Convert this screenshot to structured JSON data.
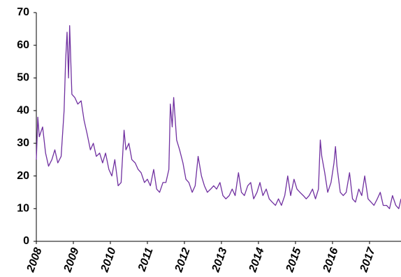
{
  "chart_data": {
    "type": "line",
    "color": "#7030a0",
    "xlim": [
      2008,
      2017.85
    ],
    "xticks": [
      2008,
      2009,
      2010,
      2011,
      2012,
      2013,
      2014,
      2015,
      2016,
      2017
    ],
    "ylim": [
      0,
      70
    ],
    "yticks": [
      0,
      10,
      20,
      30,
      40,
      50,
      60,
      70
    ],
    "grid": false,
    "x": [
      2008.0,
      2008.04,
      2008.08,
      2008.17,
      2008.25,
      2008.33,
      2008.42,
      2008.5,
      2008.58,
      2008.67,
      2008.75,
      2008.79,
      2008.83,
      2008.87,
      2008.9,
      2008.96,
      2009.04,
      2009.12,
      2009.21,
      2009.29,
      2009.37,
      2009.46,
      2009.54,
      2009.62,
      2009.71,
      2009.79,
      2009.87,
      2009.96,
      2010.04,
      2010.12,
      2010.21,
      2010.29,
      2010.37,
      2010.42,
      2010.5,
      2010.58,
      2010.67,
      2010.75,
      2010.83,
      2010.92,
      2011.0,
      2011.08,
      2011.17,
      2011.25,
      2011.33,
      2011.42,
      2011.5,
      2011.58,
      2011.62,
      2011.67,
      2011.71,
      2011.79,
      2011.87,
      2011.96,
      2012.04,
      2012.12,
      2012.21,
      2012.29,
      2012.37,
      2012.46,
      2012.54,
      2012.62,
      2012.71,
      2012.79,
      2012.87,
      2012.96,
      2013.04,
      2013.12,
      2013.21,
      2013.29,
      2013.37,
      2013.46,
      2013.54,
      2013.62,
      2013.71,
      2013.79,
      2013.87,
      2013.96,
      2014.04,
      2014.12,
      2014.21,
      2014.29,
      2014.37,
      2014.46,
      2014.54,
      2014.62,
      2014.71,
      2014.79,
      2014.87,
      2014.96,
      2015.04,
      2015.12,
      2015.21,
      2015.29,
      2015.37,
      2015.46,
      2015.54,
      2015.62,
      2015.67,
      2015.71,
      2015.79,
      2015.87,
      2015.96,
      2016.04,
      2016.08,
      2016.12,
      2016.21,
      2016.29,
      2016.37,
      2016.46,
      2016.54,
      2016.62,
      2016.71,
      2016.79,
      2016.87,
      2016.96,
      2017.04,
      2017.12,
      2017.21,
      2017.29,
      2017.37,
      2017.46,
      2017.54,
      2017.62,
      2017.71,
      2017.79,
      2017.85
    ],
    "values": [
      25,
      38,
      32,
      35,
      27,
      23,
      25,
      28,
      24,
      26,
      40,
      55,
      64,
      50,
      66,
      45,
      44,
      42,
      43,
      37,
      33,
      28,
      30,
      26,
      27,
      24,
      27,
      22,
      20,
      25,
      17,
      18,
      34,
      28,
      30,
      25,
      24,
      22,
      21,
      18,
      19,
      17,
      22,
      16,
      15,
      18,
      18,
      22,
      42,
      35,
      44,
      31,
      28,
      24,
      19,
      18,
      15,
      17,
      26,
      20,
      17,
      15,
      16,
      17,
      16,
      18,
      14,
      13,
      14,
      16,
      14,
      21,
      15,
      14,
      17,
      18,
      13,
      15,
      18,
      14,
      16,
      13,
      12,
      11,
      13,
      11,
      14,
      20,
      14,
      19,
      16,
      15,
      14,
      13,
      14,
      16,
      13,
      16,
      31,
      26,
      21,
      15,
      18,
      24,
      29,
      23,
      15,
      14,
      15,
      21,
      13,
      12,
      16,
      14,
      20,
      13,
      12,
      11,
      13,
      15,
      11,
      11,
      10,
      14,
      11,
      10,
      13
    ]
  }
}
